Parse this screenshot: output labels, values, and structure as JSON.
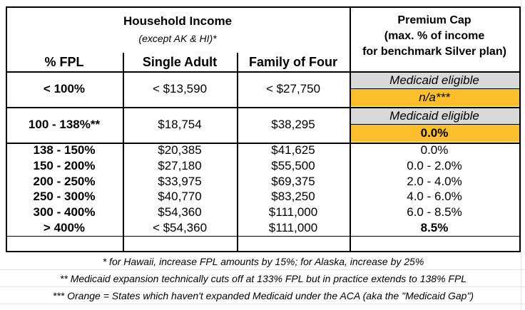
{
  "header": {
    "title": "Household Income",
    "subtitle": "(except AK & HI)*",
    "premium_cap": [
      "Premium Cap",
      "(max. % of income",
      "for benchmark Silver plan)"
    ]
  },
  "columns": [
    "% FPL",
    "Single Adult",
    "Family of Four"
  ],
  "rows": [
    [
      "< 100%",
      "< $13,590",
      "< $27,750",
      [
        "Medicaid eligible",
        "n/a***"
      ]
    ],
    [
      "100 - 138%**",
      "$18,754",
      "$38,295",
      [
        "Medicaid eligible",
        "0.0%"
      ]
    ],
    [
      "138 - 150%",
      "$20,385",
      "$41,625",
      "0.0%"
    ],
    [
      "150 - 200%",
      "$27,180",
      "$55,500",
      "0.0 - 2.0%"
    ],
    [
      "200 - 250%",
      "$33,975",
      "$69,375",
      "2.0 - 4.0%"
    ],
    [
      "250 - 300%",
      "$40,770",
      "$83,250",
      "4.0 - 6.0%"
    ],
    [
      "300 - 400%",
      "$54,360",
      "$111,000",
      "6.0 - 8.5%"
    ],
    [
      "> 400%",
      "< $54,360",
      "$111,000",
      "8.5%"
    ]
  ],
  "notes": [
    "* for Hawaii, increase FPL amounts by 15%; for Alaska, increase by 25%",
    "** Medicaid expansion technically cuts off at 133% FPL but in practice extends to 138% FPL",
    "*** Orange = States which haven't expanded Medicaid under the ACA (aka the \"Medicaid Gap\")"
  ]
}
